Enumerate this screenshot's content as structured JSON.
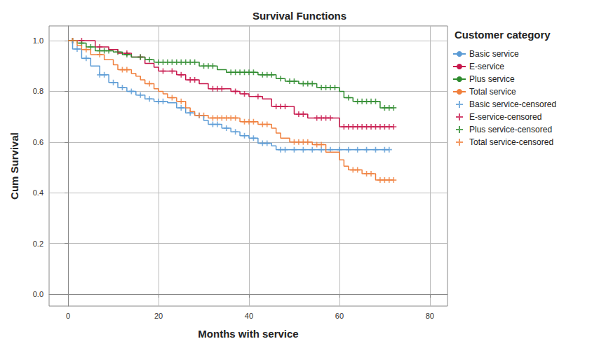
{
  "chart_data": {
    "type": "line",
    "title": "Survival Functions",
    "x_label": "Months with service",
    "y_label": "Cum Survival",
    "legend_title": "Customer category",
    "legend": "right",
    "grid": true,
    "xlim": [
      -4.2,
      83.9
    ],
    "xticks": [
      0,
      20,
      40,
      60,
      80
    ],
    "ylim": [
      -0.047,
      1.058
    ],
    "yticks": [
      {
        "value": 0,
        "label": "0.0"
      },
      {
        "value": 0.2,
        "label": "0.2"
      },
      {
        "value": 0.4,
        "label": "0.4"
      },
      {
        "value": 0.6,
        "label": "0.6"
      },
      {
        "value": 0.8,
        "label": "0.8"
      },
      {
        "value": 1,
        "label": "1.0"
      }
    ],
    "series": [
      {
        "name": "Basic service",
        "color": "#5b9bd5",
        "type": "step",
        "x": [
          0,
          1,
          3,
          5,
          7,
          9,
          11,
          13,
          15,
          17,
          19,
          22,
          24,
          26,
          28,
          30,
          31,
          34,
          36,
          38,
          40,
          42,
          45,
          46,
          71
        ],
        "values": [
          1.0,
          0.967,
          0.93,
          0.9,
          0.865,
          0.835,
          0.815,
          0.8,
          0.785,
          0.77,
          0.76,
          0.755,
          0.735,
          0.715,
          0.705,
          0.685,
          0.67,
          0.655,
          0.64,
          0.625,
          0.615,
          0.595,
          0.585,
          0.57,
          0.57
        ]
      },
      {
        "name": "E-service",
        "color": "#c7164b",
        "type": "step",
        "x": [
          0,
          6,
          9,
          11,
          14,
          17,
          19,
          20,
          24,
          26,
          29,
          31,
          36,
          38,
          40,
          43,
          45,
          50,
          53,
          60,
          72
        ],
        "values": [
          1.0,
          0.975,
          0.965,
          0.95,
          0.935,
          0.91,
          0.895,
          0.88,
          0.865,
          0.845,
          0.83,
          0.81,
          0.8,
          0.79,
          0.78,
          0.77,
          0.74,
          0.71,
          0.695,
          0.66,
          0.66
        ]
      },
      {
        "name": "Plus service",
        "color": "#2e8b2e",
        "type": "step",
        "x": [
          0,
          2,
          4,
          6,
          10,
          12,
          14,
          17,
          19,
          29,
          33,
          35,
          42,
          46,
          48,
          51,
          55,
          60,
          61,
          63,
          69,
          72
        ],
        "values": [
          1.0,
          0.99,
          0.975,
          0.96,
          0.955,
          0.945,
          0.935,
          0.925,
          0.915,
          0.9,
          0.885,
          0.875,
          0.865,
          0.85,
          0.84,
          0.83,
          0.815,
          0.8,
          0.775,
          0.76,
          0.735,
          0.735
        ]
      },
      {
        "name": "Total service",
        "color": "#f07f3c",
        "type": "step",
        "x": [
          0,
          2,
          3,
          5,
          8,
          10,
          11,
          14,
          15,
          16,
          17,
          19,
          20,
          21,
          22,
          24,
          26,
          27,
          28,
          31,
          38,
          42,
          45,
          46,
          47,
          49,
          54,
          57,
          60,
          61,
          62,
          65,
          68,
          72
        ],
        "values": [
          1.0,
          0.98,
          0.965,
          0.945,
          0.925,
          0.905,
          0.885,
          0.87,
          0.86,
          0.845,
          0.83,
          0.81,
          0.8,
          0.79,
          0.775,
          0.76,
          0.735,
          0.72,
          0.705,
          0.695,
          0.68,
          0.67,
          0.655,
          0.635,
          0.615,
          0.6,
          0.59,
          0.56,
          0.53,
          0.505,
          0.49,
          0.475,
          0.45,
          0.45
        ]
      },
      {
        "name": "Basic service-censored",
        "color": "#5b9bd5",
        "type": "scatter",
        "marker": "plus",
        "x": [
          2,
          4,
          7,
          8,
          10,
          12,
          14,
          16,
          18,
          20,
          21,
          25,
          27,
          29,
          32,
          33,
          35,
          37,
          39,
          41,
          43,
          44,
          47,
          48,
          50,
          52,
          54,
          56,
          58,
          60,
          62,
          64,
          66,
          68,
          70,
          71
        ],
        "values": [
          0.967,
          0.93,
          0.865,
          0.865,
          0.835,
          0.815,
          0.8,
          0.785,
          0.77,
          0.76,
          0.76,
          0.735,
          0.715,
          0.705,
          0.67,
          0.67,
          0.655,
          0.64,
          0.625,
          0.615,
          0.595,
          0.595,
          0.57,
          0.57,
          0.57,
          0.57,
          0.57,
          0.57,
          0.57,
          0.57,
          0.57,
          0.57,
          0.57,
          0.57,
          0.57,
          0.57
        ]
      },
      {
        "name": "E-service-censored",
        "color": "#c7164b",
        "type": "scatter",
        "marker": "plus",
        "x": [
          1,
          3,
          7,
          13,
          16,
          21,
          23,
          25,
          27,
          28,
          32,
          33,
          34,
          37,
          39,
          42,
          46,
          47,
          48,
          51,
          52,
          55,
          56,
          57,
          58,
          61,
          62,
          63,
          64,
          65,
          66,
          67,
          68,
          69,
          70,
          71,
          72
        ],
        "values": [
          1.0,
          1.0,
          0.975,
          0.95,
          0.935,
          0.88,
          0.88,
          0.865,
          0.845,
          0.845,
          0.81,
          0.81,
          0.81,
          0.8,
          0.79,
          0.78,
          0.74,
          0.74,
          0.74,
          0.71,
          0.71,
          0.695,
          0.695,
          0.695,
          0.695,
          0.66,
          0.66,
          0.66,
          0.66,
          0.66,
          0.66,
          0.66,
          0.66,
          0.66,
          0.66,
          0.66,
          0.66
        ]
      },
      {
        "name": "Plus service-censored",
        "color": "#2e8b2e",
        "type": "scatter",
        "marker": "plus",
        "x": [
          1,
          3,
          5,
          7,
          8,
          9,
          11,
          13,
          16,
          18,
          20,
          21,
          22,
          23,
          24,
          25,
          26,
          27,
          28,
          30,
          31,
          32,
          36,
          37,
          38,
          39,
          40,
          41,
          43,
          44,
          45,
          47,
          49,
          50,
          52,
          53,
          54,
          56,
          57,
          58,
          59,
          62,
          64,
          65,
          66,
          67,
          68,
          70,
          71,
          72
        ],
        "values": [
          1.0,
          0.99,
          0.975,
          0.96,
          0.96,
          0.96,
          0.955,
          0.945,
          0.935,
          0.925,
          0.915,
          0.915,
          0.915,
          0.915,
          0.915,
          0.915,
          0.915,
          0.915,
          0.915,
          0.9,
          0.9,
          0.9,
          0.875,
          0.875,
          0.875,
          0.875,
          0.875,
          0.875,
          0.865,
          0.865,
          0.865,
          0.85,
          0.84,
          0.84,
          0.83,
          0.83,
          0.83,
          0.815,
          0.815,
          0.815,
          0.815,
          0.775,
          0.76,
          0.76,
          0.76,
          0.76,
          0.76,
          0.735,
          0.735,
          0.735
        ]
      },
      {
        "name": "Total service-censored",
        "color": "#f07f3c",
        "type": "scatter",
        "marker": "plus",
        "x": [
          1,
          4,
          7,
          12,
          13,
          18,
          23,
          25,
          29,
          30,
          32,
          33,
          34,
          35,
          36,
          37,
          39,
          40,
          41,
          43,
          44,
          50,
          51,
          52,
          53,
          55,
          56,
          63,
          64,
          66,
          67,
          69,
          70,
          71,
          72
        ],
        "values": [
          1.0,
          0.965,
          0.945,
          0.885,
          0.885,
          0.83,
          0.775,
          0.76,
          0.705,
          0.705,
          0.695,
          0.695,
          0.695,
          0.695,
          0.695,
          0.695,
          0.68,
          0.68,
          0.68,
          0.67,
          0.67,
          0.6,
          0.6,
          0.6,
          0.6,
          0.59,
          0.59,
          0.49,
          0.49,
          0.475,
          0.475,
          0.45,
          0.45,
          0.45,
          0.45
        ]
      }
    ]
  }
}
